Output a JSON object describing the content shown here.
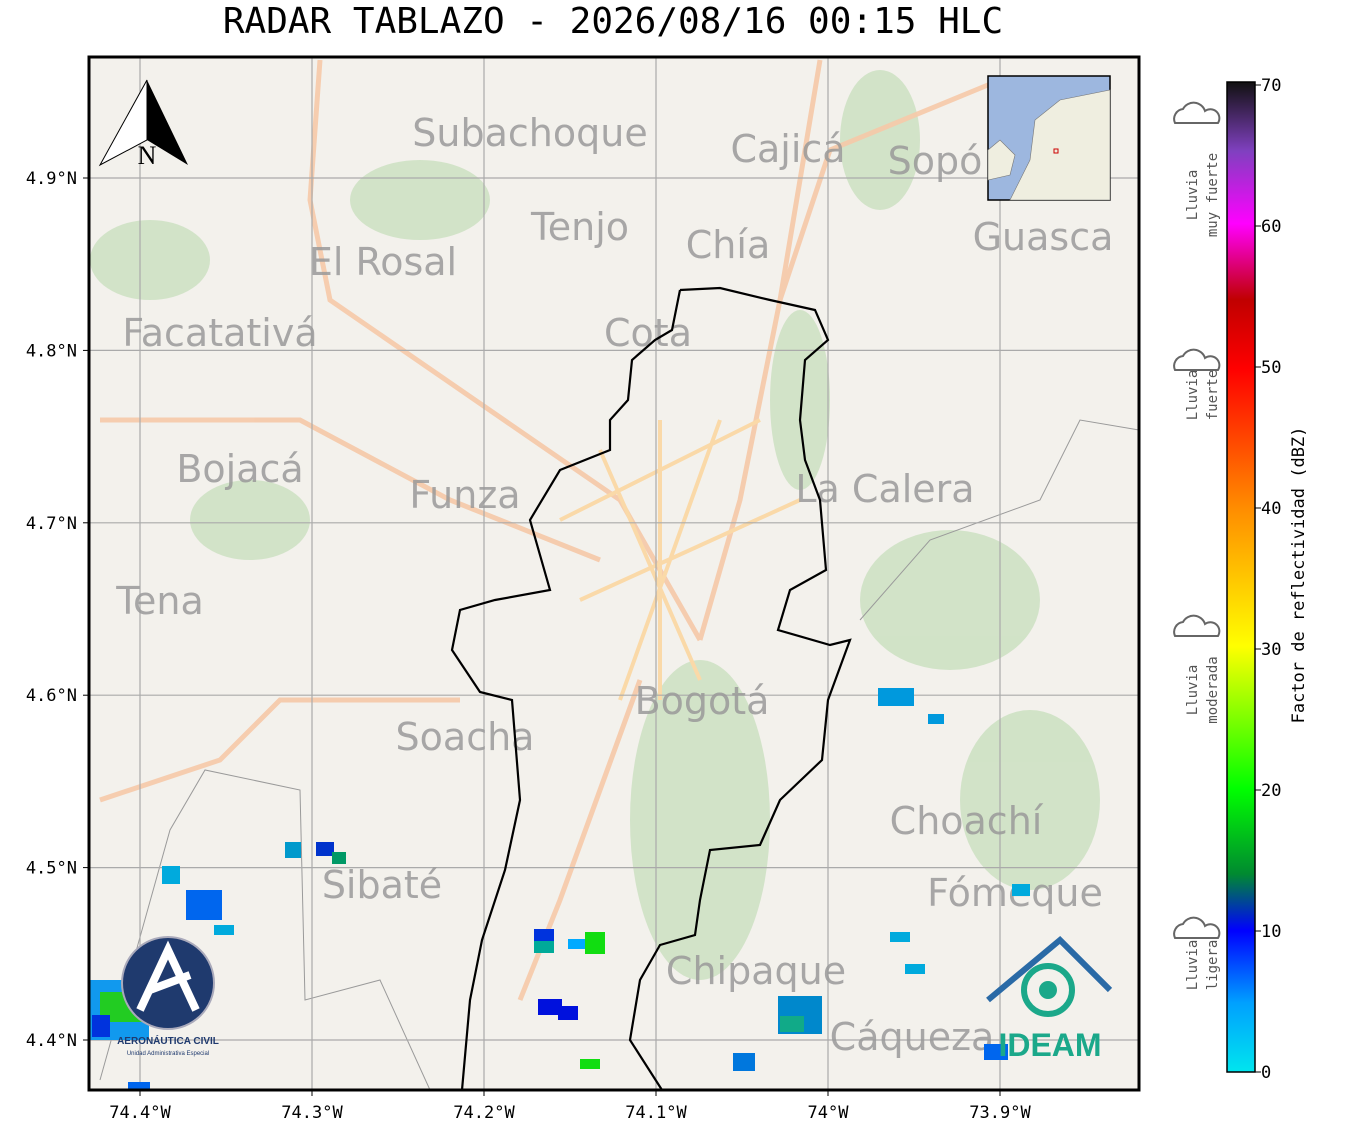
{
  "title": "RADAR TABLAZO - 2026/08/16 00:15 HLC",
  "map": {
    "lon_ticks": [
      "74.4°W",
      "74.3°W",
      "74.2°W",
      "74.1°W",
      "74°W",
      "73.9°W"
    ],
    "lat_ticks": [
      "4.4°N",
      "4.5°N",
      "4.6°N",
      "4.7°N",
      "4.8°N",
      "4.9°N"
    ],
    "north": "N",
    "places": [
      "Subachoque",
      "Cajicá",
      "Sopó",
      "Tenjo",
      "Chía",
      "Guasca",
      "El Rosal",
      "Facatativá",
      "Cota",
      "Bojacá",
      "Funza",
      "La Calera",
      "Tena",
      "Bogotá",
      "Soacha",
      "Choachí",
      "Fómeque",
      "Sibaté",
      "Chipaque",
      "Cáqueza"
    ]
  },
  "colorbar": {
    "label": "Factor de reflectividad (dBZ)",
    "ticks": [
      0,
      10,
      20,
      30,
      40,
      50,
      60,
      70
    ],
    "categories": [
      [
        "Lluvia",
        "muy fuerte"
      ],
      [
        "Lluvia",
        "fuerte"
      ],
      [
        "Lluvia",
        "moderada"
      ],
      [
        "Lluvia",
        "ligera"
      ]
    ]
  },
  "logos": {
    "aero_name": "AERONÁUTICA CIVIL",
    "aero_sub": "Unidad Administrativa Especial",
    "ideam": "IDEAM"
  }
}
